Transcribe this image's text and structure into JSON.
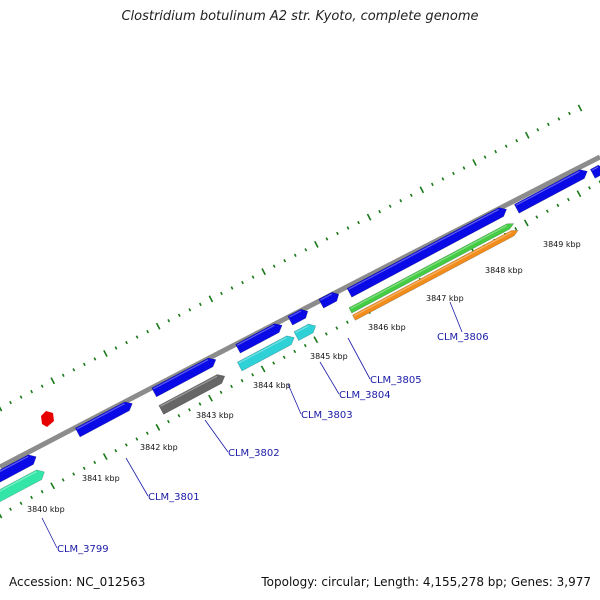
{
  "title": "Clostridium botulinum A2 str. Kyoto, complete genome",
  "footer": {
    "accession": "Accession: NC_012563",
    "summary": "Topology: circular; Length: 4,155,278 bp; Genes: 3,977"
  },
  "colors": {
    "backbone": "#8c8c8c",
    "cds": "#0a0ae6",
    "teal": "#2ed1d6",
    "green": "#44cc44",
    "orange": "#f28c1a",
    "gray": "#666666",
    "mint": "#33e6a8",
    "feature_red": "#e60000",
    "tick": "#1a7a1a",
    "label": "#1a1aa6"
  },
  "kbp_labels": [
    "3840 kbp",
    "3841 kbp",
    "3842 kbp",
    "3843 kbp",
    "3844 kbp",
    "3845 kbp",
    "3846 kbp",
    "3847 kbp",
    "3848 kbp",
    "3849 kbp"
  ],
  "gene_labels": [
    "CLM_3799",
    "CLM_3801",
    "CLM_3802",
    "CLM_3803",
    "CLM_3804",
    "CLM_3805",
    "CLM_3806"
  ]
}
